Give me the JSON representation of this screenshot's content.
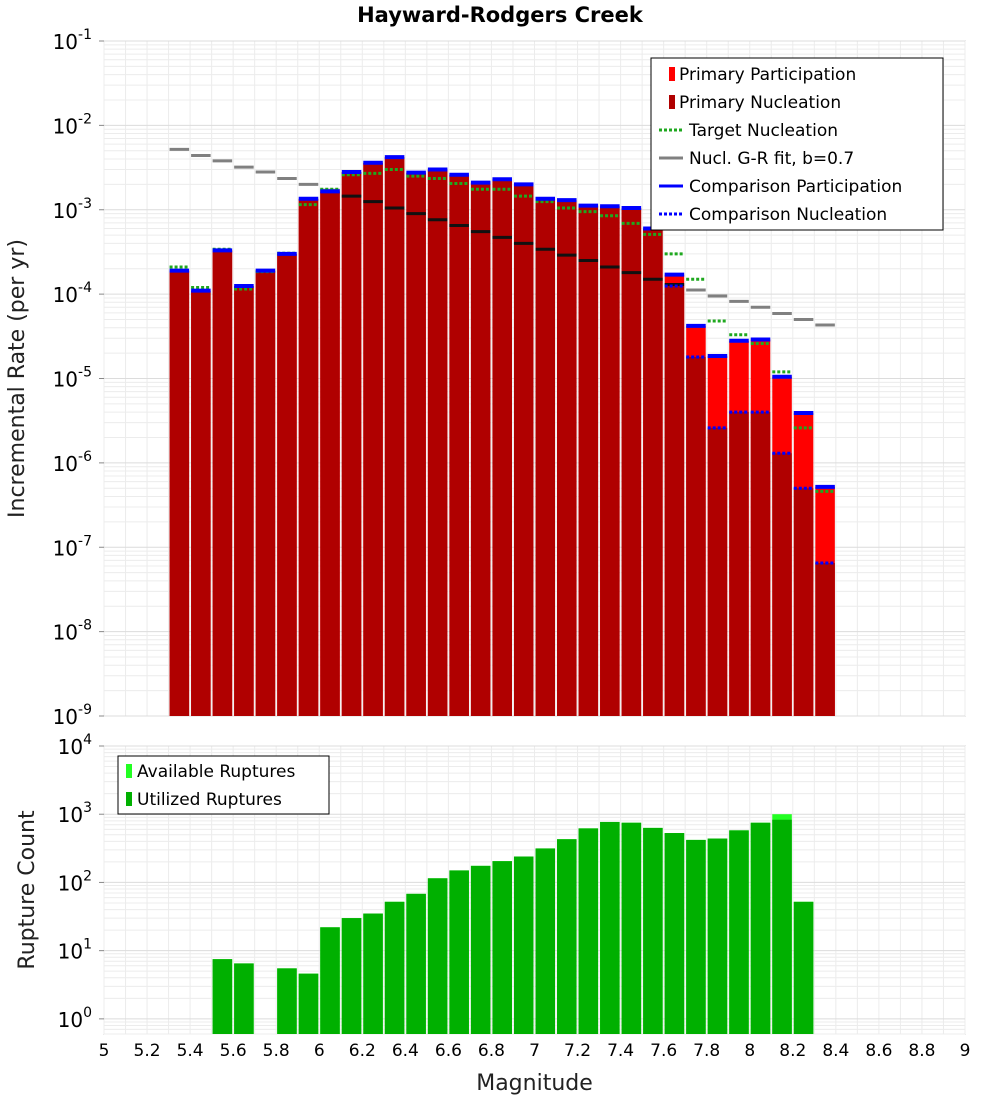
{
  "colors": {
    "primary_participation": "#ff0000",
    "primary_nucleation": "#b00000",
    "target_nucleation": "#1fa81f",
    "gr_fit": "#808080",
    "gr_fit_bottom": "#111111",
    "comparison": "#0000ff",
    "available": "#22ff22",
    "utilized": "#00b000",
    "grid": "#ececec"
  },
  "chart_data": [
    {
      "type": "bar",
      "title": "Hayward-Rodgers Creek",
      "xlabel": "",
      "ylabel": "Incremental Rate (per yr)",
      "yscale": "log",
      "xlim": [
        5,
        9
      ],
      "ylim": [
        1e-09,
        0.1
      ],
      "y_ticks": [
        {
          "base": "10",
          "exp": "-9",
          "value": 1e-09
        },
        {
          "base": "10",
          "exp": "-8",
          "value": 1e-08
        },
        {
          "base": "10",
          "exp": "-7",
          "value": 1e-07
        },
        {
          "base": "10",
          "exp": "-6",
          "value": 1e-06
        },
        {
          "base": "10",
          "exp": "-5",
          "value": 1e-05
        },
        {
          "base": "10",
          "exp": "-4",
          "value": 0.0001
        },
        {
          "base": "10",
          "exp": "-3",
          "value": 0.001
        },
        {
          "base": "10",
          "exp": "-2",
          "value": 0.01
        },
        {
          "base": "10",
          "exp": "-1",
          "value": 0.1
        }
      ],
      "grid": true,
      "legend_position": "top-right",
      "legend": [
        {
          "label": "Primary Participation",
          "style": "bar",
          "color_key": "primary_participation"
        },
        {
          "label": "Primary Nucleation",
          "style": "bar",
          "color_key": "primary_nucleation"
        },
        {
          "label": "Target Nucleation",
          "style": "dotted",
          "color_key": "target_nucleation"
        },
        {
          "label": "Nucl. G-R fit, b=0.7",
          "style": "solid",
          "color_key": "gr_fit"
        },
        {
          "label": "Comparison Participation",
          "style": "solid",
          "color_key": "comparison"
        },
        {
          "label": "Comparison Nucleation",
          "style": "dotted",
          "color_key": "comparison"
        }
      ],
      "bin_width": 0.1,
      "x": [
        5.35,
        5.45,
        5.55,
        5.65,
        5.75,
        5.85,
        5.95,
        6.05,
        6.15,
        6.25,
        6.35,
        6.45,
        6.55,
        6.65,
        6.75,
        6.85,
        6.95,
        7.05,
        7.15,
        7.25,
        7.35,
        7.45,
        7.55,
        7.65,
        7.75,
        7.85,
        7.95,
        8.05,
        8.15,
        8.25,
        8.35
      ],
      "series": [
        {
          "name": "Primary Participation",
          "style": "bar",
          "values": [
            0.00019,
            0.00011,
            0.00033,
            0.000125,
            0.00019,
            0.0003,
            0.00135,
            0.00165,
            0.0028,
            0.0036,
            0.0042,
            0.00275,
            0.003,
            0.0026,
            0.0021,
            0.0023,
            0.002,
            0.00135,
            0.0013,
            0.00112,
            0.0011,
            0.00105,
            0.0006,
            0.00017,
            4.2e-05,
            1.85e-05,
            2.8e-05,
            2.9e-05,
            1.05e-05,
            3.9e-06,
            5.2e-07
          ]
        },
        {
          "name": "Primary Nucleation",
          "style": "bar",
          "values": [
            0.00019,
            0.00011,
            0.00033,
            0.000125,
            0.00019,
            0.0003,
            0.00135,
            0.00165,
            0.0028,
            0.0036,
            0.0042,
            0.00275,
            0.003,
            0.0026,
            0.0021,
            0.0023,
            0.002,
            0.00135,
            0.0013,
            0.00112,
            0.0011,
            0.00105,
            0.0006,
            0.000125,
            1.8e-05,
            2.6e-06,
            4e-06,
            4e-06,
            1.3e-06,
            5e-07,
            6.5e-08
          ]
        },
        {
          "name": "Target Nucleation",
          "style": "dotted",
          "values": [
            0.00021,
            0.00012,
            0.00034,
            0.000115,
            0.000185,
            0.000305,
            0.00115,
            0.00175,
            0.0026,
            0.0027,
            0.003,
            0.0025,
            0.00235,
            0.00205,
            0.00175,
            0.00175,
            0.00145,
            0.00125,
            0.00105,
            0.00095,
            0.00085,
            0.00069,
            0.00051,
            0.0003,
            0.00015,
            4.8e-05,
            3.3e-05,
            2.6e-05,
            1.2e-05,
            2.6e-06,
            4.6e-07
          ]
        },
        {
          "name": "Nucl. G-R fit, b=0.7",
          "style": "solid",
          "values": [
            0.0052,
            0.0044,
            0.0038,
            0.0032,
            0.0028,
            0.00235,
            0.002,
            0.0017,
            0.00145,
            0.00125,
            0.00105,
            0.0009,
            0.00076,
            0.00065,
            0.00055,
            0.00047,
            0.0004,
            0.00034,
            0.00029,
            0.00025,
            0.00021,
            0.00018,
            0.00015,
            0.00013,
            0.000112,
            9.5e-05,
            8.2e-05,
            7e-05,
            5.9e-05,
            5e-05,
            4.3e-05
          ]
        },
        {
          "name": "Comparison Participation",
          "style": "solid",
          "values": [
            0.00019,
            0.00011,
            0.00033,
            0.000125,
            0.00019,
            0.0003,
            0.00135,
            0.00165,
            0.0028,
            0.0036,
            0.0042,
            0.00275,
            0.003,
            0.0026,
            0.0021,
            0.0023,
            0.002,
            0.00135,
            0.0013,
            0.00112,
            0.0011,
            0.00105,
            0.0006,
            0.00017,
            4.2e-05,
            1.85e-05,
            2.8e-05,
            2.9e-05,
            1.05e-05,
            3.9e-06,
            5.2e-07
          ]
        },
        {
          "name": "Comparison Nucleation",
          "style": "dotted",
          "values": [
            0.00019,
            0.00011,
            0.00033,
            0.000125,
            0.00019,
            0.0003,
            0.00135,
            0.00165,
            0.0028,
            0.0036,
            0.0042,
            0.00275,
            0.003,
            0.0026,
            0.0021,
            0.0023,
            0.002,
            0.00135,
            0.0013,
            0.00112,
            0.0011,
            0.00105,
            0.0006,
            0.000125,
            1.8e-05,
            2.6e-06,
            4e-06,
            4e-06,
            1.3e-06,
            5e-07,
            6.5e-08
          ]
        }
      ]
    },
    {
      "type": "bar",
      "title": "",
      "xlabel": "Magnitude",
      "ylabel": "Rupture Count",
      "yscale": "log",
      "xlim": [
        5,
        9
      ],
      "ylim": [
        0.6,
        10000
      ],
      "x_ticks": [
        "5",
        "5.2",
        "5.4",
        "5.6",
        "5.8",
        "6",
        "6.2",
        "6.4",
        "6.6",
        "6.8",
        "7",
        "7.2",
        "7.4",
        "7.6",
        "7.8",
        "8",
        "8.2",
        "8.4",
        "8.6",
        "8.8",
        "9"
      ],
      "y_ticks": [
        {
          "base": "10",
          "exp": "0",
          "value": 1
        },
        {
          "base": "10",
          "exp": "1",
          "value": 10
        },
        {
          "base": "10",
          "exp": "2",
          "value": 100
        },
        {
          "base": "10",
          "exp": "3",
          "value": 1000
        },
        {
          "base": "10",
          "exp": "4",
          "value": 10000
        }
      ],
      "grid": true,
      "legend_position": "top-left",
      "legend": [
        {
          "label": "Available Ruptures",
          "style": "bar",
          "color_key": "available"
        },
        {
          "label": "Utilized Ruptures",
          "style": "bar",
          "color_key": "utilized"
        }
      ],
      "bin_width": 0.1,
      "x": [
        5.55,
        5.65,
        5.85,
        5.95,
        6.05,
        6.15,
        6.25,
        6.35,
        6.45,
        6.55,
        6.65,
        6.75,
        6.85,
        6.95,
        7.05,
        7.15,
        7.25,
        7.35,
        7.45,
        7.55,
        7.65,
        7.75,
        7.85,
        7.95,
        8.05,
        8.15,
        8.25
      ],
      "series": [
        {
          "name": "Available Ruptures",
          "style": "bar",
          "values": [
            7.5,
            6.5,
            5.5,
            4.6,
            22,
            30,
            35,
            52,
            68,
            115,
            150,
            175,
            205,
            240,
            315,
            430,
            620,
            770,
            750,
            630,
            530,
            420,
            440,
            580,
            750,
            1000,
            52
          ]
        },
        {
          "name": "Utilized Ruptures",
          "style": "bar",
          "values": [
            7.5,
            6.5,
            5.5,
            4.6,
            22,
            30,
            35,
            52,
            68,
            115,
            150,
            175,
            205,
            240,
            315,
            430,
            620,
            770,
            750,
            630,
            530,
            420,
            440,
            580,
            750,
            830,
            52
          ]
        }
      ]
    }
  ]
}
